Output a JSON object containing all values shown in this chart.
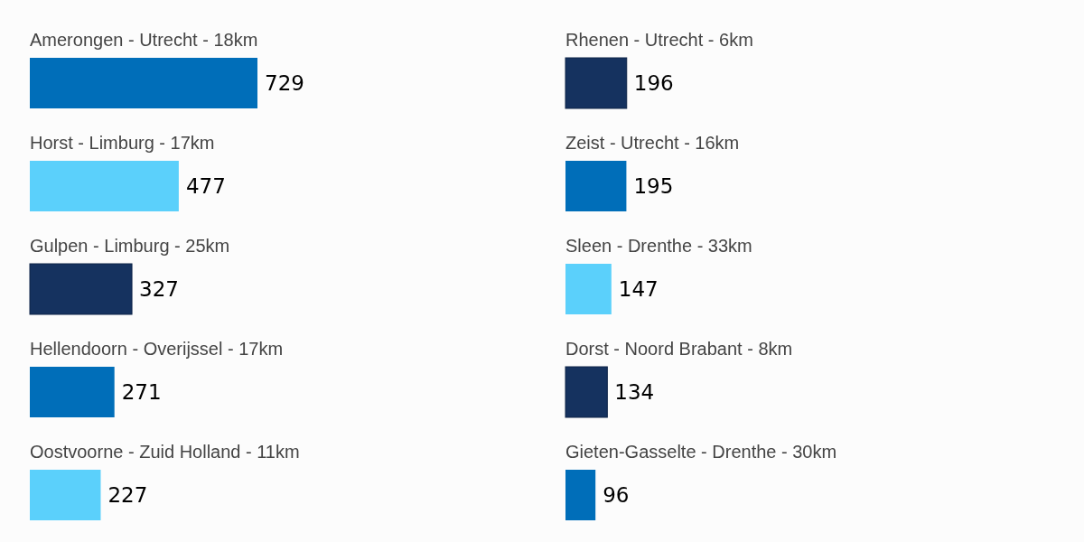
{
  "chart_data": [
    {
      "type": "bar",
      "orientation": "horizontal",
      "data_labels": true,
      "categories": [
        "Amerongen - Utrecht - 18km",
        "Horst - Limburg - 17km",
        "Gulpen - Limburg - 25km",
        "Hellendoorn - Overijssel - 17km",
        "Oostvoorne - Zuid Holland - 11km"
      ],
      "values": [
        729,
        477,
        327,
        271,
        227
      ],
      "colors": [
        "#006eb9",
        "#5bd0fb",
        "#15325f",
        "#006eb9",
        "#5bd0fb"
      ]
    },
    {
      "type": "bar",
      "orientation": "horizontal",
      "data_labels": true,
      "categories": [
        "Rhenen - Utrecht - 6km",
        "Zeist - Utrecht - 16km",
        "Sleen - Drenthe - 33km",
        "Dorst - Noord Brabant - 8km",
        "Gieten-Gasselte - Drenthe - 30km"
      ],
      "values": [
        196,
        195,
        147,
        134,
        96
      ],
      "colors": [
        "#15325f",
        "#006eb9",
        "#5bd0fb",
        "#15325f",
        "#006eb9"
      ]
    }
  ]
}
